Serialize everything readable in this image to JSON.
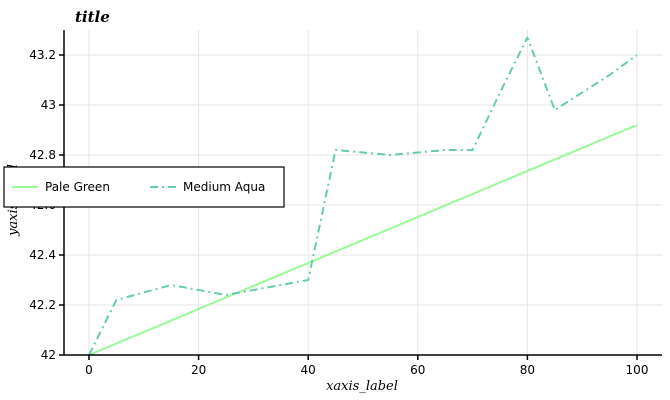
{
  "chart_data": {
    "type": "line",
    "title": "title",
    "xlabel": "xaxis_label",
    "ylabel": "yaxis_label",
    "xlim": [
      0,
      100
    ],
    "ylim": [
      42.0,
      43.3
    ],
    "x_ticks": [
      0,
      20,
      40,
      60,
      80,
      100
    ],
    "y_ticks": [
      42.0,
      42.2,
      42.4,
      42.6,
      42.8,
      43.0,
      43.2
    ],
    "x_tick_labels": [
      "0",
      "20",
      "40",
      "60",
      "80",
      "100"
    ],
    "y_tick_labels": [
      "42",
      "42.2",
      "42.4",
      "42.6",
      "42.8",
      "43",
      "43.2"
    ],
    "grid": true,
    "legend": {
      "placement": "left",
      "entries": [
        "Pale Green",
        "Medium Aqua"
      ]
    },
    "series": [
      {
        "name": "Pale Green",
        "color": "#98fb98",
        "dash": "solid",
        "points": [
          [
            0,
            42.0
          ],
          [
            100,
            42.92
          ]
        ]
      },
      {
        "name": "Medium Aqua",
        "color": "#66cdaa",
        "dash": "dashdot",
        "points": [
          [
            0,
            42.0
          ],
          [
            5,
            42.22
          ],
          [
            15,
            42.28
          ],
          [
            25,
            42.24
          ],
          [
            35,
            42.28
          ],
          [
            40,
            42.3
          ],
          [
            45,
            42.82
          ],
          [
            55,
            42.8
          ],
          [
            65,
            42.82
          ],
          [
            70,
            42.82
          ],
          [
            75,
            43.05
          ],
          [
            80,
            43.27
          ],
          [
            85,
            42.98
          ],
          [
            95,
            43.12
          ],
          [
            100,
            43.2
          ]
        ]
      }
    ]
  }
}
